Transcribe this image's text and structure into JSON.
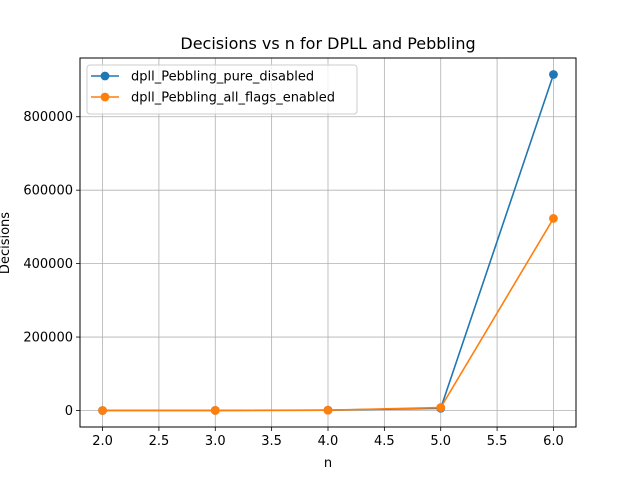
{
  "chart_data": {
    "type": "line",
    "title": "Decisions vs n for DPLL and Pebbling",
    "xlabel": "n",
    "ylabel": "Decisions",
    "x": [
      2.0,
      3.0,
      4.0,
      5.0,
      6.0
    ],
    "xlim": [
      1.8,
      6.2
    ],
    "ylim": [
      -45000,
      960000
    ],
    "xticks": [
      2.0,
      2.5,
      3.0,
      3.5,
      4.0,
      4.5,
      5.0,
      5.5,
      6.0
    ],
    "xtick_labels": [
      "2.0",
      "2.5",
      "3.0",
      "3.5",
      "4.0",
      "4.5",
      "5.0",
      "5.5",
      "6.0"
    ],
    "yticks": [
      0,
      200000,
      400000,
      600000,
      800000
    ],
    "ytick_labels": [
      "0",
      "200000",
      "400000",
      "600000",
      "800000"
    ],
    "grid": true,
    "legend_position": "top-left",
    "series": [
      {
        "name": "dpll_Pebbling_pure_disabled",
        "color": "#1f77b4",
        "marker": "circle",
        "values": [
          20,
          150,
          900,
          6000,
          915000
        ]
      },
      {
        "name": "dpll_Pebbling_all_flags_enabled",
        "color": "#ff7f0e",
        "marker": "circle",
        "values": [
          15,
          100,
          700,
          8000,
          523000
        ]
      }
    ]
  }
}
